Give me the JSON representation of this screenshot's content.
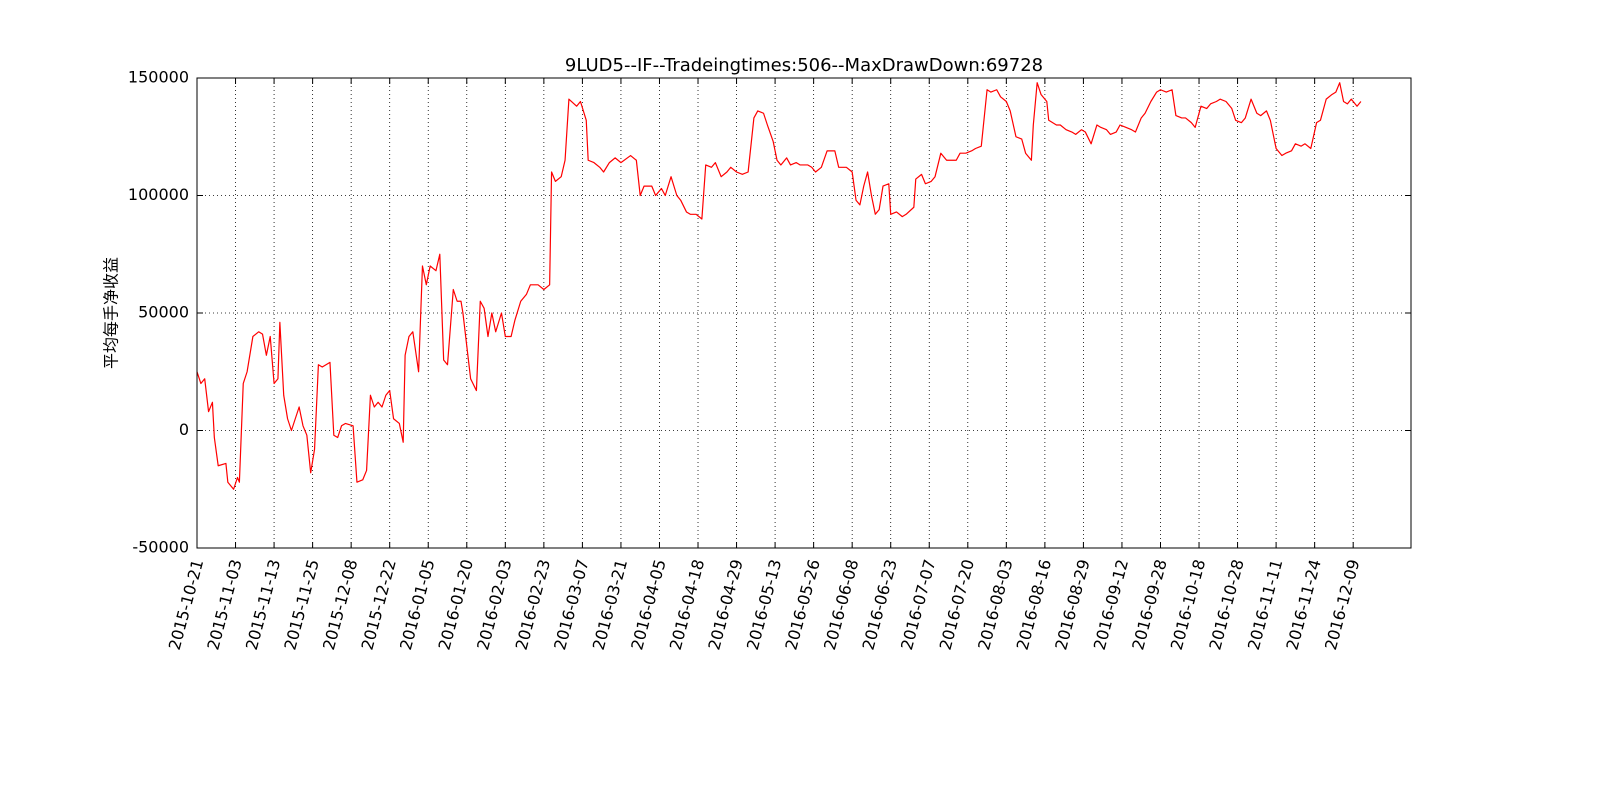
{
  "chart_data": {
    "type": "line",
    "title": "9LUD5--IF--Tradeingtimes:506--MaxDrawDown:69728",
    "y_label": "平均每手净收益",
    "grid": true,
    "xlim": [
      0,
      630
    ],
    "ylim": [
      -50000,
      150000
    ],
    "yticks": [
      -50000,
      0,
      50000,
      100000,
      150000
    ],
    "xticks": [
      {
        "value": 0,
        "label": "2015-10-21"
      },
      {
        "value": 20,
        "label": "2015-11-03"
      },
      {
        "value": 40,
        "label": "2015-11-13"
      },
      {
        "value": 60,
        "label": "2015-11-25"
      },
      {
        "value": 80,
        "label": "2015-12-08"
      },
      {
        "value": 100,
        "label": "2015-12-22"
      },
      {
        "value": 120,
        "label": "2016-01-05"
      },
      {
        "value": 140,
        "label": "2016-01-20"
      },
      {
        "value": 160,
        "label": "2016-02-03"
      },
      {
        "value": 180,
        "label": "2016-02-23"
      },
      {
        "value": 200,
        "label": "2016-03-07"
      },
      {
        "value": 220,
        "label": "2016-03-21"
      },
      {
        "value": 240,
        "label": "2016-04-05"
      },
      {
        "value": 260,
        "label": "2016-04-18"
      },
      {
        "value": 280,
        "label": "2016-04-29"
      },
      {
        "value": 300,
        "label": "2016-05-13"
      },
      {
        "value": 320,
        "label": "2016-05-26"
      },
      {
        "value": 340,
        "label": "2016-06-08"
      },
      {
        "value": 360,
        "label": "2016-06-23"
      },
      {
        "value": 380,
        "label": "2016-07-07"
      },
      {
        "value": 400,
        "label": "2016-07-20"
      },
      {
        "value": 420,
        "label": "2016-08-03"
      },
      {
        "value": 440,
        "label": "2016-08-16"
      },
      {
        "value": 460,
        "label": "2016-08-29"
      },
      {
        "value": 480,
        "label": "2016-09-12"
      },
      {
        "value": 500,
        "label": "2016-09-28"
      },
      {
        "value": 520,
        "label": "2016-10-18"
      },
      {
        "value": 540,
        "label": "2016-10-28"
      },
      {
        "value": 560,
        "label": "2016-11-11"
      },
      {
        "value": 580,
        "label": "2016-11-24"
      },
      {
        "value": 600,
        "label": "2016-12-09"
      }
    ],
    "series": [
      {
        "color": "#ff0000",
        "x": [
          0,
          2,
          4,
          6,
          8,
          9,
          11,
          15,
          16,
          19,
          21,
          22,
          24,
          26,
          28,
          29,
          32,
          34,
          36,
          38,
          40,
          42,
          43,
          45,
          47,
          49,
          53,
          55,
          57,
          59,
          61,
          63,
          65,
          69,
          71,
          73,
          75,
          77,
          81,
          83,
          86,
          88,
          90,
          92,
          94,
          96,
          98,
          100,
          102,
          105,
          107,
          108,
          110,
          112,
          115,
          117,
          119,
          121,
          124,
          126,
          128,
          130,
          133,
          135,
          137,
          138,
          140,
          142,
          145,
          147,
          149,
          151,
          153,
          155,
          158,
          160,
          163,
          165,
          168,
          171,
          173,
          177,
          180,
          183,
          184,
          186,
          189,
          191,
          193,
          197,
          199,
          202,
          203,
          206,
          209,
          211,
          214,
          217,
          220,
          225,
          228,
          230,
          232,
          236,
          238,
          241,
          243,
          246,
          249,
          251,
          254,
          256,
          259,
          262,
          264,
          267,
          269,
          272,
          275,
          277,
          280,
          283,
          286,
          289,
          291,
          294,
          296,
          299,
          301,
          303,
          306,
          308,
          311,
          313,
          317,
          319,
          321,
          324,
          327,
          331,
          333,
          337,
          340,
          342,
          344,
          346,
          348,
          350,
          352,
          354,
          356,
          359,
          360,
          363,
          366,
          368,
          372,
          373,
          376,
          378,
          381,
          383,
          386,
          389,
          391,
          394,
          396,
          399,
          402,
          404,
          407,
          410,
          412,
          415,
          417,
          420,
          422,
          425,
          428,
          430,
          433,
          434,
          436,
          438,
          441,
          442,
          446,
          448,
          451,
          454,
          456,
          459,
          461,
          464,
          467,
          469,
          472,
          474,
          477,
          479,
          482,
          485,
          487,
          490,
          492,
          495,
          498,
          500,
          503,
          506,
          508,
          511,
          513,
          516,
          518,
          521,
          524,
          526,
          529,
          531,
          534,
          537,
          539,
          542,
          544,
          547,
          550,
          552,
          555,
          557,
          560,
          563,
          565,
          568,
          570,
          573,
          575,
          578,
          581,
          583,
          586,
          589,
          591,
          593,
          595,
          597,
          599,
          602,
          604
        ],
        "values": [
          25000,
          20000,
          22000,
          8000,
          12000,
          -3000,
          -15000,
          -14000,
          -22000,
          -25000,
          -20000,
          -22000,
          20000,
          25000,
          35000,
          40000,
          42000,
          41000,
          32000,
          40000,
          20000,
          22000,
          46000,
          15000,
          5000,
          0,
          10000,
          2000,
          -2000,
          -18000,
          -8000,
          28000,
          27000,
          29000,
          -2000,
          -3000,
          2000,
          3000,
          2000,
          -22000,
          -21000,
          -17000,
          15000,
          10000,
          12000,
          10000,
          15000,
          17000,
          5000,
          3000,
          -5000,
          32000,
          40000,
          42000,
          25000,
          70000,
          62000,
          70000,
          68000,
          75000,
          30000,
          28000,
          60000,
          55000,
          55000,
          50000,
          36000,
          22000,
          17000,
          55000,
          52000,
          40000,
          50000,
          42000,
          50000,
          40000,
          40000,
          47000,
          55000,
          58000,
          62000,
          62000,
          60000,
          62000,
          110000,
          106000,
          108000,
          115000,
          141000,
          138000,
          140000,
          132000,
          115000,
          114000,
          112000,
          110000,
          114000,
          116000,
          114000,
          117000,
          115000,
          100000,
          104000,
          104000,
          100000,
          103000,
          100000,
          108000,
          100000,
          98000,
          93000,
          92000,
          92000,
          90000,
          113000,
          112000,
          114000,
          108000,
          110000,
          112000,
          110000,
          109000,
          110000,
          133000,
          136000,
          135000,
          130000,
          123000,
          115000,
          113000,
          116000,
          113000,
          114000,
          113000,
          113000,
          112000,
          110000,
          112000,
          119000,
          119000,
          112000,
          112000,
          110000,
          98000,
          96000,
          104000,
          110000,
          100000,
          92000,
          94000,
          104000,
          105000,
          92000,
          93000,
          91000,
          92000,
          95000,
          107000,
          109000,
          105000,
          106000,
          108000,
          118000,
          115000,
          115000,
          115000,
          118000,
          118000,
          119000,
          120000,
          121000,
          145000,
          144000,
          145000,
          142000,
          140000,
          136000,
          125000,
          124000,
          118000,
          115000,
          130000,
          148000,
          143000,
          140000,
          132000,
          130000,
          130000,
          128000,
          127000,
          126000,
          128000,
          127000,
          122000,
          130000,
          129000,
          128000,
          126000,
          127000,
          130000,
          129000,
          128000,
          127000,
          133000,
          135000,
          140000,
          144000,
          145000,
          144000,
          145000,
          134000,
          133000,
          133000,
          131000,
          129000,
          138000,
          137000,
          139000,
          140000,
          141000,
          140000,
          137000,
          132000,
          131000,
          133000,
          141000,
          135000,
          134000,
          136000,
          132000,
          120000,
          117000,
          118000,
          119000,
          122000,
          121000,
          122000,
          120000,
          131000,
          132000,
          141000,
          143000,
          144000,
          148000,
          140000,
          139000,
          141000,
          138000,
          140000
        ]
      }
    ]
  }
}
